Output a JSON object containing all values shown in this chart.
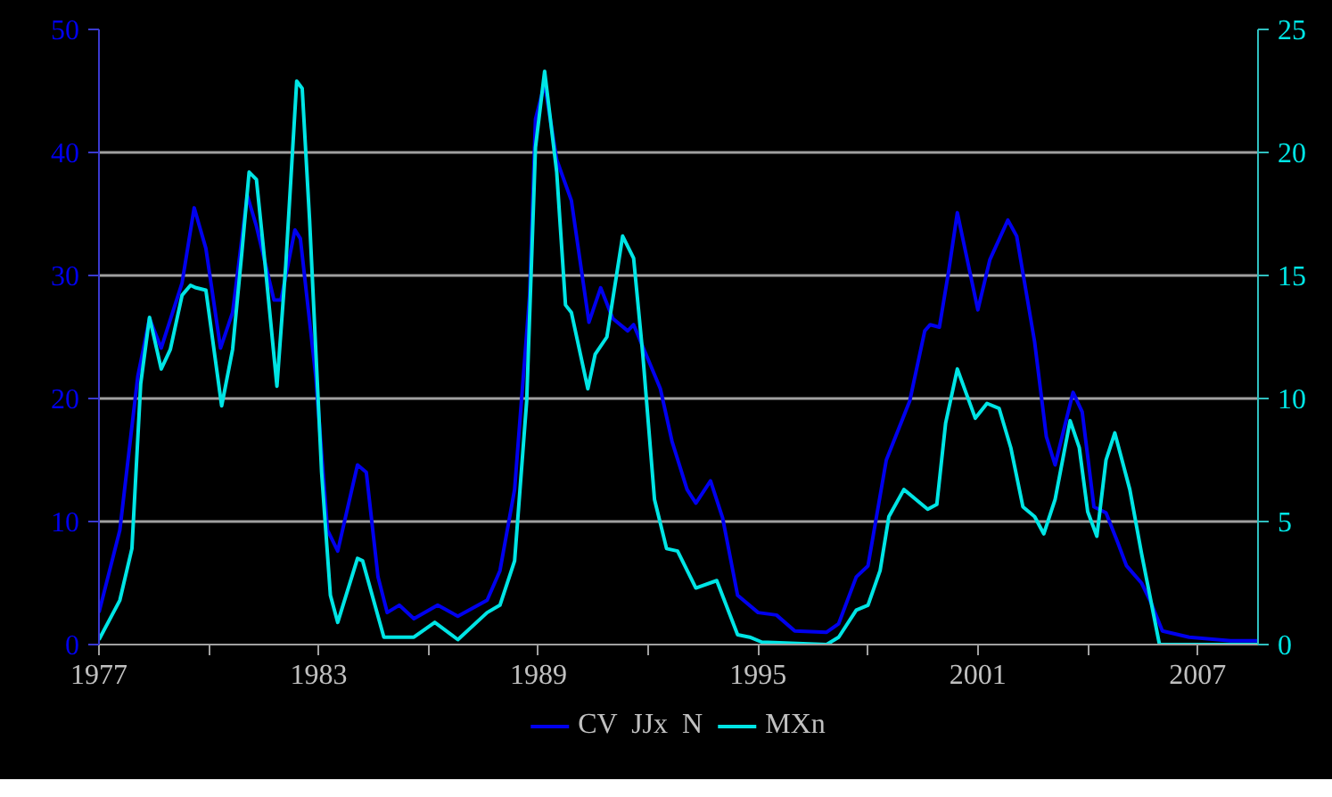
{
  "chart_data": {
    "type": "line",
    "xlim": [
      1977,
      2008.65
    ],
    "xticks": [
      1977,
      {
        "value": 1980,
        "label": null
      },
      1983,
      {
        "value": 1986,
        "label": null
      },
      1989,
      {
        "value": 1992,
        "label": null
      },
      1995,
      {
        "value": 1998,
        "label": null
      },
      2001,
      {
        "value": 2004,
        "label": null
      },
      2007
    ],
    "ylim": [
      0,
      50
    ],
    "yticks": [
      0,
      10,
      20,
      30,
      40,
      50
    ],
    "y2lim": [
      0,
      25
    ],
    "y2ticks": [
      0,
      5,
      10,
      15,
      20,
      25
    ],
    "grid": "y",
    "legend": "bottom",
    "marker": "none",
    "line_style": "solid",
    "series": [
      {
        "name": "CV  JJx  N",
        "color": "#0000ee",
        "x": [
          1977.0,
          1977.57,
          1978.06,
          1978.38,
          1978.7,
          1979.27,
          1979.6,
          1979.92,
          1980.32,
          1980.65,
          1981.05,
          1981.3,
          1981.78,
          1981.97,
          1982.35,
          1982.5,
          1982.92,
          1983.24,
          1983.52,
          1984.06,
          1984.3,
          1984.62,
          1984.87,
          1985.2,
          1985.6,
          1986.25,
          1986.8,
          1987.6,
          1987.95,
          1988.35,
          1988.76,
          1988.92,
          1989.17,
          1989.5,
          1989.9,
          1990.38,
          1990.7,
          1991.03,
          1991.44,
          1991.6,
          1992.33,
          1992.65,
          1993.06,
          1993.3,
          1993.7,
          1994.03,
          1994.44,
          1995.0,
          1995.5,
          1996.0,
          1996.87,
          1997.2,
          1997.68,
          1998.0,
          1998.5,
          1999.14,
          1999.55,
          1999.7,
          1999.95,
          2000.2,
          2000.44,
          2001.0,
          2001.33,
          2001.82,
          2002.06,
          2002.55,
          2002.87,
          2003.11,
          2003.6,
          2003.85,
          2004.17,
          2004.5,
          2004.82,
          2005.06,
          2005.47,
          2005.7,
          2006.04,
          2006.77,
          2007.9,
          2008.63
        ],
        "values": [
          2.6,
          9.3,
          21.8,
          26.5,
          24.1,
          29.4,
          35.5,
          32.2,
          24.1,
          27,
          36.5,
          34,
          28,
          28,
          33.7,
          33,
          21.8,
          9.3,
          7.6,
          14.6,
          14,
          5.5,
          2.6,
          3.2,
          2.1,
          3.2,
          2.3,
          3.6,
          6,
          12.6,
          28.4,
          42.7,
          45.6,
          39.4,
          36.1,
          26.2,
          29,
          26.5,
          25.5,
          26,
          20.8,
          16.5,
          12.6,
          11.5,
          13.3,
          10.3,
          4,
          2.6,
          2.4,
          1.1,
          1.0,
          1.7,
          5.5,
          6.4,
          15,
          19.8,
          25.5,
          26,
          25.8,
          30.3,
          35.1,
          27.2,
          31.3,
          34.5,
          33.2,
          24.6,
          16.9,
          14.6,
          20.5,
          18.9,
          11.2,
          10.7,
          8.3,
          6.4,
          5.0,
          3.6,
          1.1,
          0.6,
          0.3,
          0.3
        ]
      },
      {
        "name": "MXn",
        "color": "#00e5e5",
        "axis": "y2",
        "x": [
          1977.0,
          1977.57,
          1977.9,
          1978.14,
          1978.38,
          1978.7,
          1978.95,
          1979.27,
          1979.5,
          1979.65,
          1979.92,
          1980.35,
          1980.65,
          1980.9,
          1981.1,
          1981.3,
          1981.54,
          1981.86,
          1982.1,
          1982.4,
          1982.55,
          1982.75,
          1983.08,
          1983.32,
          1983.52,
          1984.06,
          1984.2,
          1984.78,
          1985.6,
          1986.17,
          1986.8,
          1987.6,
          1987.95,
          1988.35,
          1988.68,
          1988.92,
          1989.17,
          1989.5,
          1989.74,
          1989.9,
          1990.35,
          1990.55,
          1990.87,
          1991.3,
          1991.6,
          1991.85,
          1992.17,
          1992.5,
          1992.8,
          1993.3,
          1993.87,
          1994.44,
          1994.77,
          1995.1,
          1996.87,
          1997.2,
          1997.68,
          1998.0,
          1998.33,
          1998.57,
          1998.98,
          1999.63,
          1999.88,
          2000.12,
          2000.44,
          2000.93,
          2001.25,
          2001.58,
          2001.9,
          2002.23,
          2002.55,
          2002.8,
          2003.11,
          2003.52,
          2003.77,
          2004.0,
          2004.25,
          2004.5,
          2004.74,
          2005.15,
          2005.47,
          2005.96,
          2008.63
        ],
        "values": [
          0.2,
          1.8,
          3.9,
          10.6,
          13.3,
          11.2,
          12,
          14.2,
          14.6,
          14.5,
          14.4,
          9.7,
          12.0,
          15.9,
          19.2,
          18.9,
          15.4,
          10.5,
          15.4,
          22.9,
          22.6,
          17.3,
          7.0,
          2.0,
          0.9,
          3.5,
          3.4,
          0.3,
          0.3,
          0.9,
          0.2,
          1.3,
          1.6,
          3.4,
          9.9,
          20.2,
          23.3,
          19.2,
          13.8,
          13.5,
          10.4,
          11.8,
          12.5,
          16.6,
          15.7,
          11.8,
          5.9,
          3.9,
          3.8,
          2.3,
          2.6,
          0.4,
          0.3,
          0.1,
          0,
          0.3,
          1.4,
          1.6,
          3.0,
          5.2,
          6.3,
          5.5,
          5.7,
          9.0,
          11.2,
          9.2,
          9.8,
          9.6,
          8.0,
          5.6,
          5.2,
          4.5,
          5.9,
          9.1,
          8.0,
          5.4,
          4.4,
          7.5,
          8.6,
          6.3,
          3.7,
          0,
          0
        ]
      }
    ]
  }
}
